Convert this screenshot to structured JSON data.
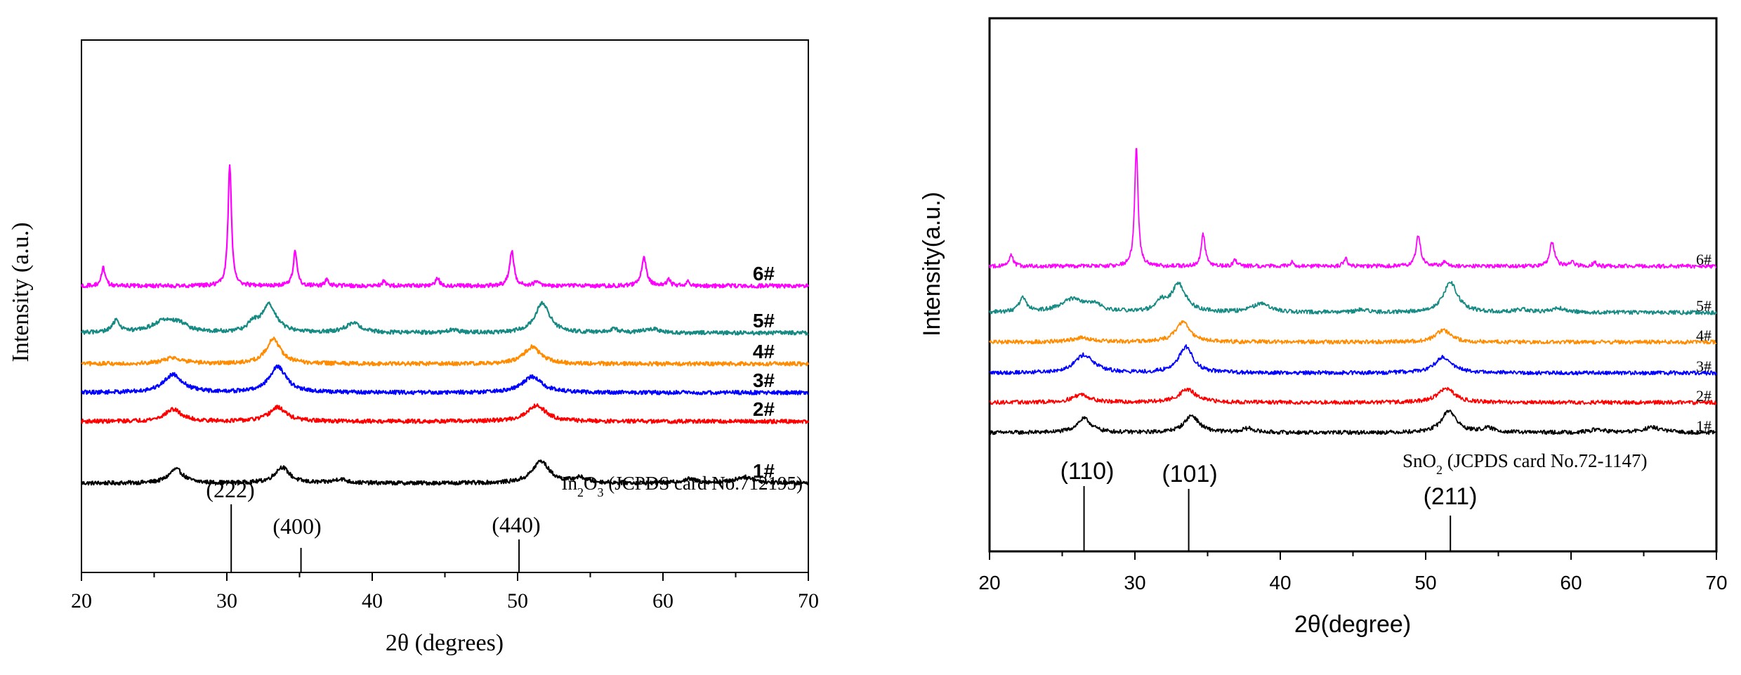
{
  "chart_data": [
    {
      "type": "line",
      "title": "",
      "xlabel": "2θ (degrees)",
      "ylabel": "Intensity (a.u.)",
      "xlim": [
        20,
        70
      ],
      "xticks": [
        "20",
        "30",
        "40",
        "50",
        "60",
        "70"
      ],
      "series": [
        {
          "name": "1#",
          "color": "#000000",
          "peaks": [
            [
              26.5,
              14,
              0.6
            ],
            [
              33.8,
              16,
              0.6
            ],
            [
              37.8,
              4,
              0.5
            ],
            [
              51.6,
              22,
              0.7
            ],
            [
              54.3,
              5,
              0.6
            ],
            [
              61.8,
              4,
              0.6
            ],
            [
              65.6,
              6,
              0.8
            ]
          ]
        },
        {
          "name": "2#",
          "color": "#ff0000",
          "peaks": [
            [
              26.3,
              12,
              0.7
            ],
            [
              33.5,
              14,
              0.7
            ],
            [
              51.3,
              16,
              0.8
            ]
          ]
        },
        {
          "name": "3#",
          "color": "#0000ff",
          "peaks": [
            [
              26.3,
              18,
              0.8
            ],
            [
              33.5,
              26,
              0.7
            ],
            [
              51.0,
              16,
              0.8
            ]
          ]
        },
        {
          "name": "4#",
          "color": "#ff8c00",
          "peaks": [
            [
              26.3,
              6,
              0.8
            ],
            [
              33.2,
              25,
              0.6
            ],
            [
              51.0,
              17,
              0.7
            ]
          ]
        },
        {
          "name": "5#",
          "color": "#178a84",
          "peaks": [
            [
              22.4,
              12,
              0.3
            ],
            [
              25.7,
              12,
              1.0
            ],
            [
              26.8,
              6,
              0.6
            ],
            [
              31.8,
              8,
              0.4
            ],
            [
              32.9,
              28,
              0.6
            ],
            [
              38.7,
              9,
              0.7
            ],
            [
              45.6,
              3,
              0.4
            ],
            [
              51.7,
              30,
              0.6
            ],
            [
              56.6,
              3,
              0.5
            ],
            [
              59.2,
              4,
              0.6
            ]
          ]
        },
        {
          "name": "6#",
          "color": "#ff00ff",
          "peaks": [
            [
              21.5,
              18,
              0.15
            ],
            [
              30.2,
              122,
              0.14
            ],
            [
              34.7,
              35,
              0.16
            ],
            [
              36.9,
              7,
              0.15
            ],
            [
              40.8,
              5,
              0.15
            ],
            [
              44.5,
              8,
              0.15
            ],
            [
              49.6,
              35,
              0.18
            ],
            [
              51.3,
              4,
              0.2
            ],
            [
              58.7,
              28,
              0.2
            ],
            [
              60.4,
              6,
              0.15
            ],
            [
              61.7,
              4,
              0.15
            ]
          ]
        }
      ],
      "reference": {
        "label_main": "In",
        "label_sub1": "2",
        "label_mid": "O",
        "label_sub2": "3",
        "label_tail": " (JCPDS card No.712195)",
        "lines": [
          {
            "pos": 30.3,
            "hkl": "(222)",
            "height": 0.62
          },
          {
            "pos": 35.1,
            "hkl": "(400)",
            "height": 0.3
          },
          {
            "pos": 50.1,
            "hkl": "(440)",
            "height": 0.35
          }
        ]
      }
    },
    {
      "type": "line",
      "title": "",
      "xlabel": "2θ(degree)",
      "ylabel": "Intensity(a.u.)",
      "xlim": [
        20,
        70
      ],
      "xticks": [
        "20",
        "30",
        "40",
        "50",
        "60",
        "70"
      ],
      "series": [
        {
          "name": "1#",
          "color": "#000000",
          "peaks": [
            [
              26.5,
              14,
              0.6
            ],
            [
              33.9,
              17,
              0.6
            ],
            [
              37.8,
              4,
              0.5
            ],
            [
              51.6,
              22,
              0.6
            ],
            [
              54.3,
              4,
              0.6
            ],
            [
              61.8,
              3,
              0.6
            ],
            [
              65.6,
              5,
              0.8
            ]
          ]
        },
        {
          "name": "2#",
          "color": "#ff0000",
          "peaks": [
            [
              26.3,
              8,
              0.7
            ],
            [
              33.6,
              13,
              0.7
            ],
            [
              51.4,
              14,
              0.7
            ]
          ]
        },
        {
          "name": "3#",
          "color": "#0000ff",
          "peaks": [
            [
              26.5,
              18,
              0.8
            ],
            [
              33.5,
              26,
              0.6
            ],
            [
              51.2,
              16,
              0.7
            ]
          ]
        },
        {
          "name": "4#",
          "color": "#ff8c00",
          "peaks": [
            [
              26.3,
              4,
              0.8
            ],
            [
              33.3,
              20,
              0.6
            ],
            [
              51.2,
              12,
              0.6
            ]
          ]
        },
        {
          "name": "5#",
          "color": "#178a84",
          "peaks": [
            [
              22.3,
              14,
              0.3
            ],
            [
              25.7,
              13,
              1.0
            ],
            [
              27.2,
              6,
              0.6
            ],
            [
              31.8,
              9,
              0.4
            ],
            [
              33.0,
              28,
              0.6
            ],
            [
              38.7,
              9,
              0.7
            ],
            [
              45.6,
              3,
              0.4
            ],
            [
              51.7,
              30,
              0.6
            ],
            [
              56.6,
              3,
              0.5
            ],
            [
              59.2,
              4,
              0.6
            ]
          ]
        },
        {
          "name": "6#",
          "color": "#ff00ff",
          "peaks": [
            [
              21.5,
              12,
              0.15
            ],
            [
              30.1,
              120,
              0.14
            ],
            [
              34.7,
              32,
              0.16
            ],
            [
              36.9,
              6,
              0.15
            ],
            [
              40.8,
              4,
              0.15
            ],
            [
              44.5,
              8,
              0.15
            ],
            [
              49.5,
              32,
              0.18
            ],
            [
              51.3,
              4,
              0.2
            ],
            [
              58.7,
              24,
              0.2
            ],
            [
              60.1,
              5,
              0.15
            ],
            [
              61.6,
              4,
              0.15
            ]
          ]
        }
      ],
      "reference": {
        "label_main": "SnO",
        "label_sub1": "2",
        "label_mid": "",
        "label_sub2": "",
        "label_tail": " (JCPDS card No.72-1147)",
        "lines": [
          {
            "pos": 26.5,
            "hkl": "(110)",
            "height": 0.55
          },
          {
            "pos": 33.7,
            "hkl": "(101)",
            "height": 0.52
          },
          {
            "pos": 51.7,
            "hkl": "(211)",
            "height": 0.35
          }
        ]
      }
    }
  ]
}
